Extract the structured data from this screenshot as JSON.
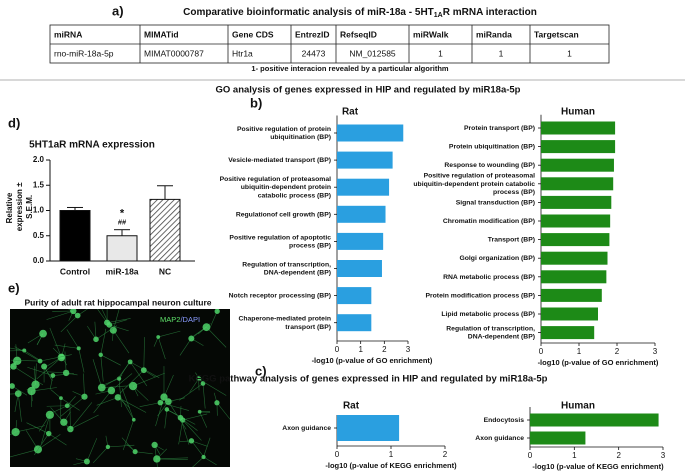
{
  "panel_labels": [
    "a)",
    "b)",
    "c)",
    "d)",
    "e)"
  ],
  "table": {
    "title": [
      "Comparative bioinformatic analysis of miR-18a - 5HT",
      "1A",
      "R mRNA interaction"
    ],
    "header": [
      "miRNA",
      "MIMATid",
      "Gene CDS",
      "EntrezID",
      "RefseqID",
      "miRWalk",
      "miRanda",
      "Targetscan"
    ],
    "rows": [
      [
        "rno-miR-18a-5p",
        "MIMAT0000787",
        "Htr1a",
        "24473",
        "NM_012585",
        "1",
        "1",
        "1"
      ]
    ],
    "note": "1- positive interacion revealed by a particular algorithm"
  },
  "figure_titles": {
    "go": "GO analysis of genes expressed in HIP and regulated by miR18a-5p",
    "kegg": "KEGG pathway analysis of genes expressed in HIP and regulated by miR18a-5p"
  },
  "image": {
    "title": "Purity of adult rat hippocampal neuron culture",
    "label": [
      "MAP2",
      "/DAPI"
    ]
  },
  "chart_data": [
    {
      "type": "hbar",
      "title": "Rat",
      "color": "#2a9fe0",
      "categories": [
        "Positive regulation of protein ubiquitination (BP)",
        "Vesicle-mediated transport (BP)",
        "Positive regulation of proteasomal ubiquitin-dependent protein catabolic process (BP)",
        "Regulationof cell growth (BP)",
        "Positive regulation of apoptotic process (BP)",
        "Regulation of transcription, DNA-dependent (BP)",
        "Notch receptor processing (BP)",
        "Chaperone-mediated protein transport (BP)"
      ],
      "values": [
        2.8,
        2.35,
        2.2,
        2.05,
        1.95,
        1.9,
        1.45,
        1.45
      ],
      "xlim": [
        0,
        3
      ],
      "xticks": [
        0,
        1,
        2,
        3
      ],
      "xlabel": "-log10 (p-value of GO enrichment)"
    },
    {
      "type": "hbar",
      "title": "Human",
      "color": "#1d8a17",
      "categories": [
        "Protein transport (BP)",
        "Protein ubiquitination (BP)",
        "Response to wounding (BP)",
        "Positive regulation of proteasomal ubiquitin-dependent protein catabolic process (BP)",
        "Signal transduction (BP)",
        "Chromatin modification (BP)",
        "Transport (BP)",
        "Golgi organization (BP)",
        "RNA metabolic process (BP)",
        "Protein modification process (BP)",
        "Lipid metabolic process (BP)",
        "Regulation of transcription, DNA-dependent (BP)"
      ],
      "values": [
        1.95,
        1.95,
        1.92,
        1.9,
        1.85,
        1.82,
        1.8,
        1.75,
        1.72,
        1.6,
        1.5,
        1.4
      ],
      "xlim": [
        0,
        3
      ],
      "xticks": [
        0,
        1,
        2,
        3
      ],
      "xlabel": "-log10 (p-value of GO enrichment)"
    },
    {
      "type": "hbar",
      "title": "Rat",
      "color": "#2a9fe0",
      "categories": [
        "Axon guidance"
      ],
      "values": [
        1.15
      ],
      "xlim": [
        0,
        2
      ],
      "xticks": [
        0,
        1,
        2
      ],
      "xlabel": "-log10 (p-value of KEGG enrichment)"
    },
    {
      "type": "hbar",
      "title": "Human",
      "color": "#1d8a17",
      "categories": [
        "Endocytosis",
        "Axon guidance"
      ],
      "values": [
        2.9,
        1.25
      ],
      "xlim": [
        0,
        3
      ],
      "xticks": [
        0,
        1,
        2,
        3
      ],
      "xlabel": "-log10 (p-value of KEGG enrichment)"
    },
    {
      "type": "bar",
      "title": "5HT1aR mRNA expression",
      "ylabel": "Relative expression ± S.E.M.",
      "categories": [
        "Control",
        "miR-18a",
        "NC"
      ],
      "values": [
        1.0,
        0.5,
        1.22
      ],
      "errors": [
        0.06,
        0.12,
        0.27
      ],
      "colors": [
        "#000000",
        "#e8e8e8",
        "#ffffff"
      ],
      "hatch": [
        false,
        false,
        true
      ],
      "annotations": [
        "*",
        "##"
      ],
      "ylim": [
        0,
        2
      ],
      "yticks": [
        {
          "value": 0,
          "label": "0.0"
        },
        0.5,
        {
          "value": 1,
          "label": "1.0"
        },
        1.5,
        {
          "value": 2,
          "label": "2.0"
        }
      ]
    }
  ]
}
